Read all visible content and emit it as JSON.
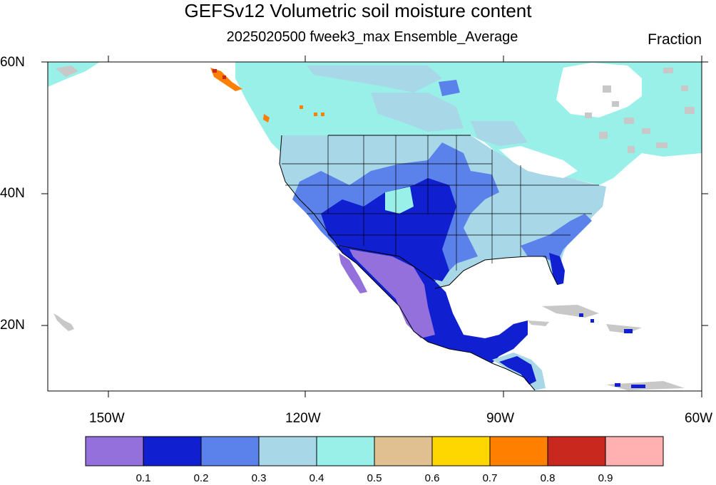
{
  "title": "GEFSv12 Volumetric soil moisture content",
  "subtitle": "2025020500 fweek3_max Ensemble_Average",
  "units": "Fraction",
  "lat_labels": [
    "60N",
    "40N",
    "20N"
  ],
  "lon_labels": [
    "150W",
    "120W",
    "90W",
    "60W"
  ],
  "colorbar": {
    "colors": [
      "#9370db",
      "#1020d0",
      "#5b82ea",
      "#a8d8e8",
      "#98f0e8",
      "#e0c090",
      "#ffd700",
      "#ff7f00",
      "#c8281e",
      "#ffb0b0"
    ],
    "labels": [
      "0.1",
      "0.2",
      "0.3",
      "0.4",
      "0.5",
      "0.6",
      "0.7",
      "0.8",
      "0.9"
    ]
  },
  "colors": {
    "land_missing": "#c8c8c8",
    "ocean": "#ffffff",
    "boundary": "#000000"
  }
}
